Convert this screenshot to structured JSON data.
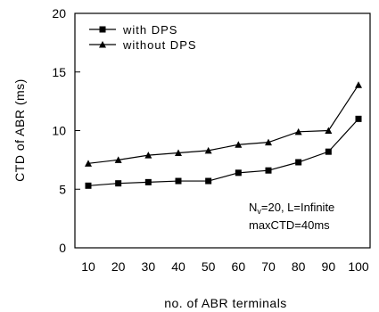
{
  "chart_data": {
    "type": "line",
    "x": [
      10,
      20,
      30,
      40,
      50,
      60,
      70,
      80,
      90,
      100
    ],
    "series": [
      {
        "name": "with DPS",
        "marker": "square",
        "values": [
          5.3,
          5.5,
          5.6,
          5.7,
          5.7,
          6.4,
          6.6,
          7.3,
          8.2,
          11.0
        ]
      },
      {
        "name": "without DPS",
        "marker": "triangle",
        "values": [
          7.2,
          7.5,
          7.9,
          8.1,
          8.3,
          8.8,
          9.0,
          9.9,
          10.0,
          13.9
        ]
      }
    ],
    "xlabel": "no. of ABR terminals",
    "ylabel": "CTD of ABR (ms)",
    "ylim": [
      0,
      20
    ],
    "yticks": [
      0,
      5,
      10,
      15,
      20
    ],
    "xtick_labels": [
      "10",
      "20",
      "30",
      "40",
      "50",
      "60",
      "70",
      "80",
      "90",
      "100"
    ],
    "grid": false,
    "legend_position": "top-left",
    "annotation": {
      "line1_prefix": "N",
      "line1_sub": "v",
      "line1_rest": "=20, L=Infinite",
      "line2": "maxCTD=40ms"
    },
    "colors": {
      "lines": "#000000",
      "frame": "#000000",
      "background": "#ffffff"
    }
  }
}
